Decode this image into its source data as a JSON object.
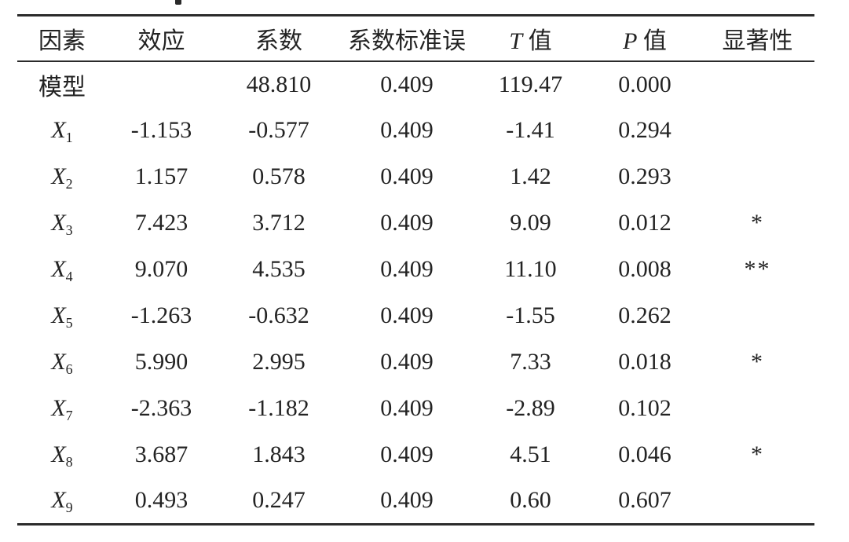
{
  "table": {
    "header": [
      {
        "italic": "",
        "text": "因素"
      },
      {
        "italic": "",
        "text": "效应"
      },
      {
        "italic": "",
        "text": "系数"
      },
      {
        "italic": "",
        "text": "系数标准误"
      },
      {
        "italic": "T",
        "text": "值"
      },
      {
        "italic": "P",
        "text": "值"
      },
      {
        "italic": "",
        "text": "显著性"
      }
    ],
    "rows": [
      {
        "factor": "模型",
        "factor_sub": "",
        "effect": "",
        "coefficient": "48.810",
        "std_error": "0.409",
        "t_value": "119.47",
        "p_value": "0.000",
        "significance": ""
      },
      {
        "factor": "X",
        "factor_sub": "1",
        "effect": "-1.153",
        "coefficient": "-0.577",
        "std_error": "0.409",
        "t_value": "-1.41",
        "p_value": "0.294",
        "significance": ""
      },
      {
        "factor": "X",
        "factor_sub": "2",
        "effect": "1.157",
        "coefficient": "0.578",
        "std_error": "0.409",
        "t_value": "1.42",
        "p_value": "0.293",
        "significance": ""
      },
      {
        "factor": "X",
        "factor_sub": "3",
        "effect": "7.423",
        "coefficient": "3.712",
        "std_error": "0.409",
        "t_value": "9.09",
        "p_value": "0.012",
        "significance": "*"
      },
      {
        "factor": "X",
        "factor_sub": "4",
        "effect": "9.070",
        "coefficient": "4.535",
        "std_error": "0.409",
        "t_value": "11.10",
        "p_value": "0.008",
        "significance": "**"
      },
      {
        "factor": "X",
        "factor_sub": "5",
        "effect": "-1.263",
        "coefficient": "-0.632",
        "std_error": "0.409",
        "t_value": "-1.55",
        "p_value": "0.262",
        "significance": ""
      },
      {
        "factor": "X",
        "factor_sub": "6",
        "effect": "5.990",
        "coefficient": "2.995",
        "std_error": "0.409",
        "t_value": "7.33",
        "p_value": "0.018",
        "significance": "*"
      },
      {
        "factor": "X",
        "factor_sub": "7",
        "effect": "-2.363",
        "coefficient": "-1.182",
        "std_error": "0.409",
        "t_value": "-2.89",
        "p_value": "0.102",
        "significance": ""
      },
      {
        "factor": "X",
        "factor_sub": "8",
        "effect": "3.687",
        "coefficient": "1.843",
        "std_error": "0.409",
        "t_value": "4.51",
        "p_value": "0.046",
        "significance": "*"
      },
      {
        "factor": "X",
        "factor_sub": "9",
        "effect": "0.493",
        "coefficient": "0.247",
        "std_error": "0.409",
        "t_value": "0.60",
        "p_value": "0.607",
        "significance": ""
      }
    ],
    "colors": {
      "text": "#232323",
      "rule": "#2b2b2b",
      "background": "#ffffff"
    }
  }
}
